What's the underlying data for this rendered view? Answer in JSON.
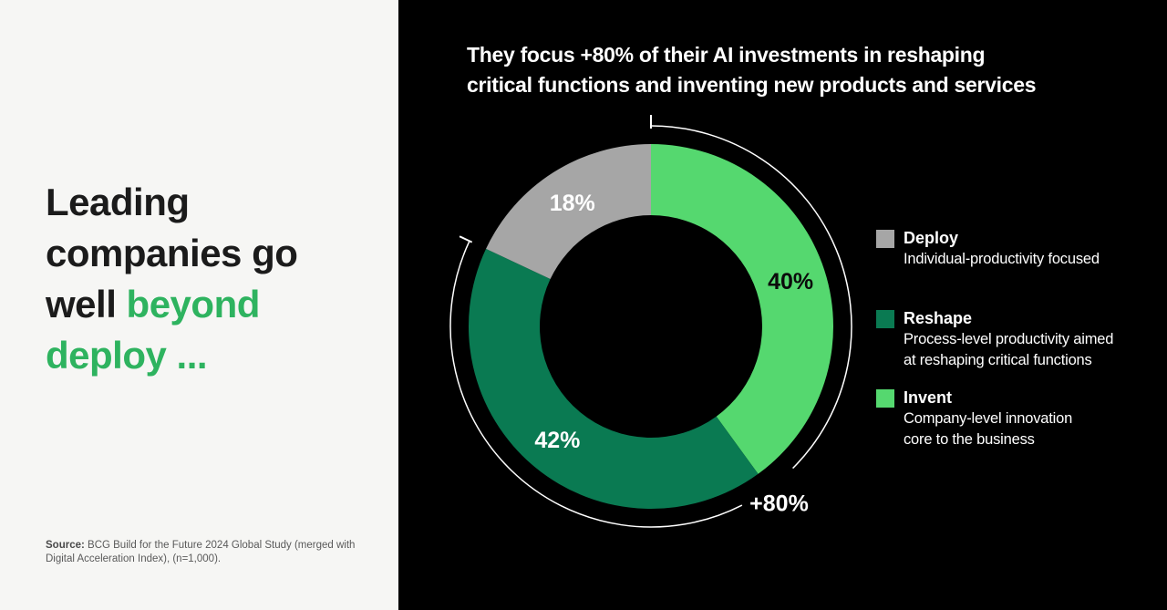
{
  "left_panel": {
    "headline": {
      "l1": "Leading",
      "l2": "companies go",
      "l3a": "well ",
      "l3b": "beyond",
      "l4": "deploy ..."
    },
    "source_label": "Source:",
    "source_text": " BCG Build for the Future 2024 Global Study (merged with Digital Acceleration Index), (n=1,000)."
  },
  "right_panel": {
    "title_lines": [
      "They focus +80% of their AI investments in reshaping",
      "critical functions and inventing new products and services"
    ],
    "legend": [
      {
        "name": "Deploy",
        "color": "#a6a6a6",
        "desc_lines": [
          "Individual-productivity focused"
        ]
      },
      {
        "name": "Reshape",
        "color": "#0a7a52",
        "desc_lines": [
          "Process-level productivity aimed",
          "at reshaping critical functions"
        ]
      },
      {
        "name": "Invent",
        "color": "#55d86f",
        "desc_lines": [
          "Company-level innovation",
          "core to the business"
        ]
      }
    ]
  },
  "chart_data": {
    "type": "pie",
    "subtype": "donut",
    "title": "They focus +80% of their AI investments in reshaping critical functions and inventing new products and services",
    "start_angle_deg": 0,
    "direction": "clockwise",
    "unit": "%",
    "segments": [
      {
        "label": "Invent",
        "value": 40,
        "color": "#55d86f",
        "value_label": "40%",
        "value_label_color": "#0b0b0b"
      },
      {
        "label": "Reshape",
        "value": 42,
        "color": "#0a7a52",
        "value_label": "42%",
        "value_label_color": "#ffffff"
      },
      {
        "label": "Deploy",
        "value": 18,
        "color": "#a6a6a6",
        "value_label": "18%",
        "value_label_color": "#ffffff"
      }
    ],
    "annotation": {
      "label": "+80%",
      "covers_segments": [
        "Invent",
        "Reshape"
      ],
      "covers_pct": 82
    },
    "legend_position": "right"
  },
  "colors": {
    "accent_green": "#2eb35f",
    "light_green": "#55d86f",
    "dark_green": "#0a7a52",
    "gray": "#a6a6a6",
    "left_panel_bg": "#f6f6f4",
    "right_panel_bg": "#000000",
    "text_dark": "#1b1b1b",
    "text_light": "#ffffff",
    "source_gray": "#5a5a5a"
  }
}
